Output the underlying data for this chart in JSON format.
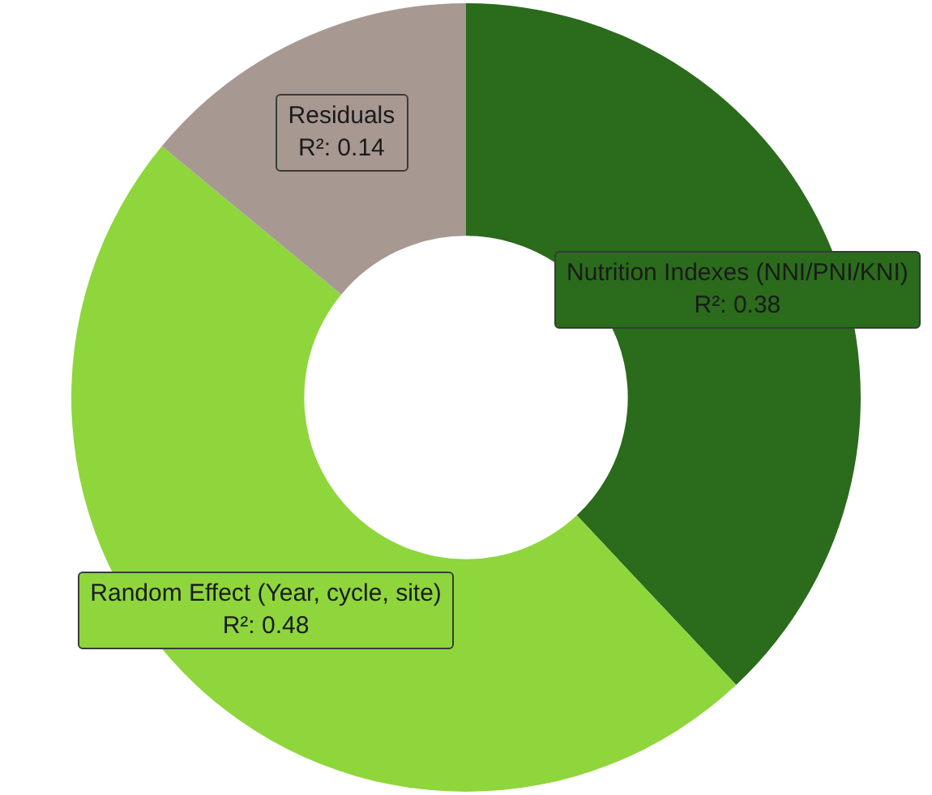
{
  "chart_data": {
    "type": "donut",
    "categories": [
      "Nutrition Indexes (NNI/PNI/KNI)",
      "Random Effect (Year, cycle, site)",
      "Residuals"
    ],
    "values": [
      0.38,
      0.48,
      0.14
    ],
    "value_labels": [
      "R²: 0.38",
      "R²: 0.48",
      "R²: 0.14"
    ],
    "colors": [
      "#2a6b1c",
      "#8ed63c",
      "#a89892"
    ],
    "legend": false
  }
}
